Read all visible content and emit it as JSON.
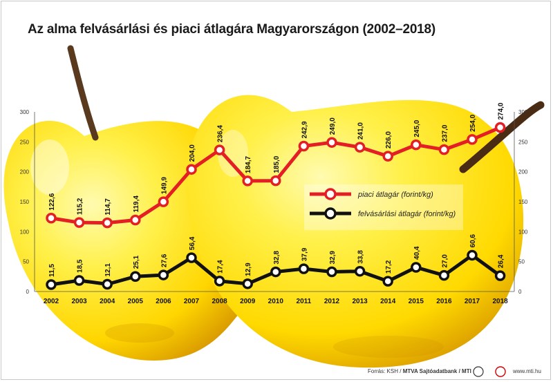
{
  "title": "Az alma felvásárlási és piaci átlagára Magyarországon (2002–2018)",
  "footer": {
    "source_prefix": "Forrás: KSH / ",
    "source_org": "MTVA Sajtóadatbank / MTI",
    "site": "www.mti.hu"
  },
  "colors": {
    "piaci": "#e31e24",
    "felvasarlasi": "#111111",
    "apple_light": "#fff37a",
    "apple_mid": "#ffe000",
    "apple_dark": "#e0a800",
    "stem": "#5a3a1e"
  },
  "chart_data": {
    "type": "line",
    "title": "Az alma felvásárlási és piaci átlagára Magyarországon (2002–2018)",
    "x": [
      "2002",
      "2003",
      "2004",
      "2005",
      "2006",
      "2007",
      "2008",
      "2009",
      "2010",
      "2011",
      "2012",
      "2013",
      "2014",
      "2015",
      "2016",
      "2017",
      "2018"
    ],
    "ylim": [
      0,
      300
    ],
    "yticks": [
      "0",
      "50",
      "100",
      "150",
      "200",
      "250",
      "300"
    ],
    "grid": false,
    "legend_position": "center-right",
    "series": [
      {
        "name": "piaci átlagár (forint/kg)",
        "color": "#e31e24",
        "values": [
          122.6,
          115.2,
          114.7,
          119.4,
          149.9,
          204.0,
          236.4,
          184.7,
          185.0,
          242.9,
          249.0,
          241.0,
          226.0,
          245.0,
          237.0,
          254.0,
          274.0
        ],
        "labels": [
          "122,6",
          "115,2",
          "114,7",
          "119,4",
          "149,9",
          "204,0",
          "236,4",
          "184,7",
          "185,0",
          "242,9",
          "249,0",
          "241,0",
          "226,0",
          "245,0",
          "237,0",
          "254,0",
          "274,0"
        ]
      },
      {
        "name": "felvásárlási átlagár (forint/kg)",
        "color": "#111111",
        "values": [
          11.5,
          18.5,
          12.1,
          25.1,
          27.6,
          56.4,
          17.4,
          12.9,
          32.8,
          37.9,
          32.9,
          33.8,
          17.2,
          40.4,
          27.0,
          60.6,
          26.4
        ],
        "labels": [
          "11,5",
          "18,5",
          "12,1",
          "25,1",
          "27,6",
          "56,4",
          "17,4",
          "12,9",
          "32,8",
          "37,9",
          "32,9",
          "33,8",
          "17,2",
          "40,4",
          "27,0",
          "60,6",
          "26,4"
        ]
      }
    ]
  }
}
